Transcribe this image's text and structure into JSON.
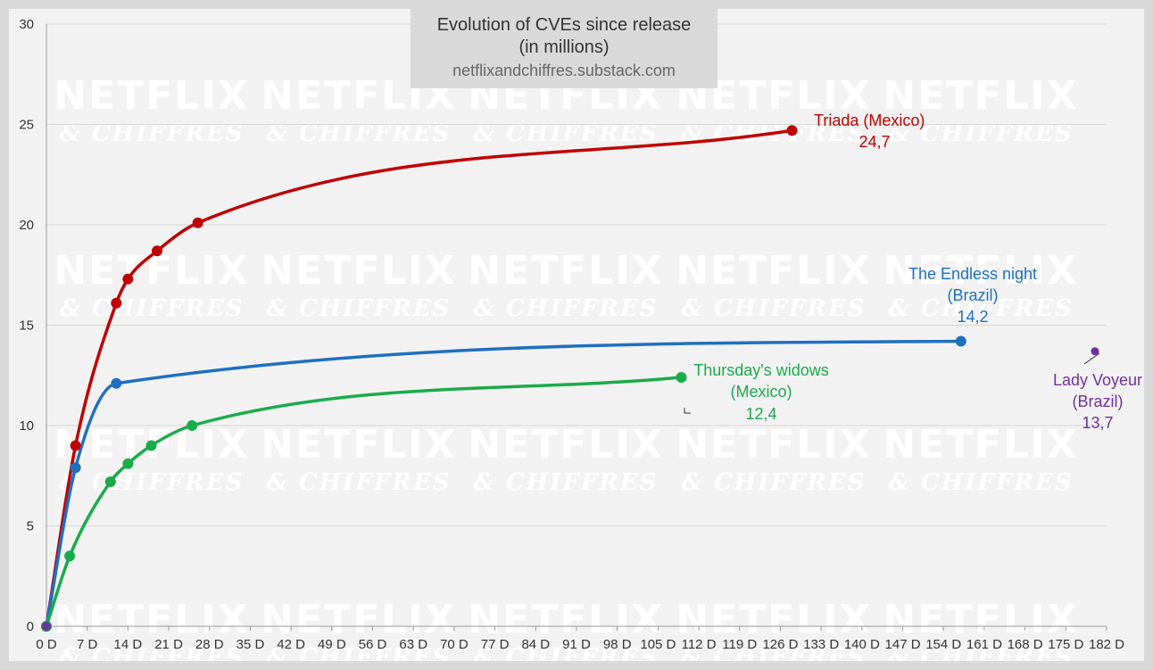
{
  "chart_data": {
    "type": "line",
    "title": "Evolution of CVEs since release",
    "title_line2": "(in millions)",
    "subtitle": "netflixandchiffres.substack.com",
    "watermark": [
      "NETFLIX",
      "& CHIFFRES"
    ],
    "xlabel": "",
    "ylabel": "",
    "xlim": [
      0,
      182
    ],
    "ylim": [
      0,
      30
    ],
    "grid": true,
    "x_ticks": [
      "0 D",
      "7 D",
      "14 D",
      "21 D",
      "28 D",
      "35 D",
      "42 D",
      "49 D",
      "56 D",
      "63 D",
      "70 D",
      "77 D",
      "84 D",
      "91 D",
      "98 D",
      "105 D",
      "112 D",
      "119 D",
      "126 D",
      "133 D",
      "140 D",
      "147 D",
      "154 D",
      "161 D",
      "168 D",
      "175 D",
      "182 D"
    ],
    "y_ticks": [
      "0",
      "5",
      "10",
      "15",
      "20",
      "25",
      "30"
    ],
    "series": [
      {
        "name": "Triada (Mexico)",
        "value_label": "24,7",
        "color": "#c00000",
        "x": [
          0,
          5,
          12,
          14,
          19,
          26,
          128
        ],
        "y": [
          0,
          9.0,
          16.1,
          17.3,
          18.7,
          20.1,
          24.7
        ]
      },
      {
        "name": "The Endless night",
        "name_line2": "(Brazil)",
        "value_label": "14,2",
        "color": "#1f6fc0",
        "x": [
          0,
          5,
          12,
          157
        ],
        "y": [
          0,
          7.9,
          12.1,
          14.2
        ]
      },
      {
        "name": "Thursday's widows",
        "name_line2": "(Mexico)",
        "value_label": "12,4",
        "color": "#1aab4a",
        "x": [
          0,
          4,
          11,
          14,
          18,
          25,
          109
        ],
        "y": [
          0,
          3.5,
          7.2,
          8.1,
          9.0,
          10.0,
          12.4
        ]
      },
      {
        "name": "Lady Voyeur",
        "name_line2": "(Brazil)",
        "value_label": "13,7",
        "color": "#7030a0",
        "x": [
          0,
          180
        ],
        "y": [
          0,
          13.7
        ]
      }
    ]
  }
}
